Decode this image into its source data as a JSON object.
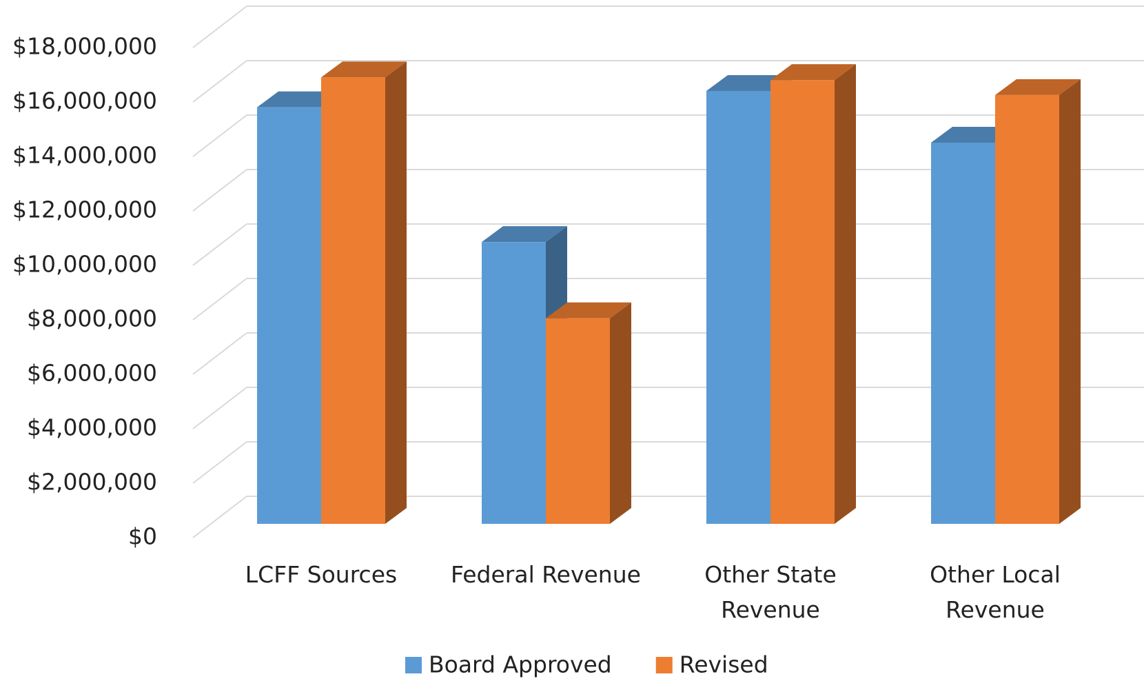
{
  "chart_data": {
    "type": "bar3d",
    "categories": [
      "LCFF Sources",
      "Federal Revenue",
      "Other State Revenue",
      "Other Local Revenue"
    ],
    "series": [
      {
        "name": "Board Approved",
        "color": "#5b9bd5",
        "values": [
          15300000,
          10350000,
          15900000,
          14000000
        ]
      },
      {
        "name": "Revised",
        "color": "#ed7d31",
        "values": [
          16400000,
          7550000,
          16300000,
          15750000
        ]
      }
    ],
    "ylim": [
      0,
      18000000
    ],
    "yticks": [
      {
        "value": 0,
        "label": "$0"
      },
      {
        "value": 2000000,
        "label": "$2,000,000"
      },
      {
        "value": 4000000,
        "label": "$4,000,000"
      },
      {
        "value": 6000000,
        "label": "$6,000,000"
      },
      {
        "value": 8000000,
        "label": "$8,000,000"
      },
      {
        "value": 10000000,
        "label": "$10,000,000"
      },
      {
        "value": 12000000,
        "label": "$12,000,000"
      },
      {
        "value": 14000000,
        "label": "$14,000,000"
      },
      {
        "value": 16000000,
        "label": "$16,000,000"
      },
      {
        "value": 18000000,
        "label": "$18,000,000"
      }
    ],
    "grid": true,
    "legend": "bottom"
  }
}
